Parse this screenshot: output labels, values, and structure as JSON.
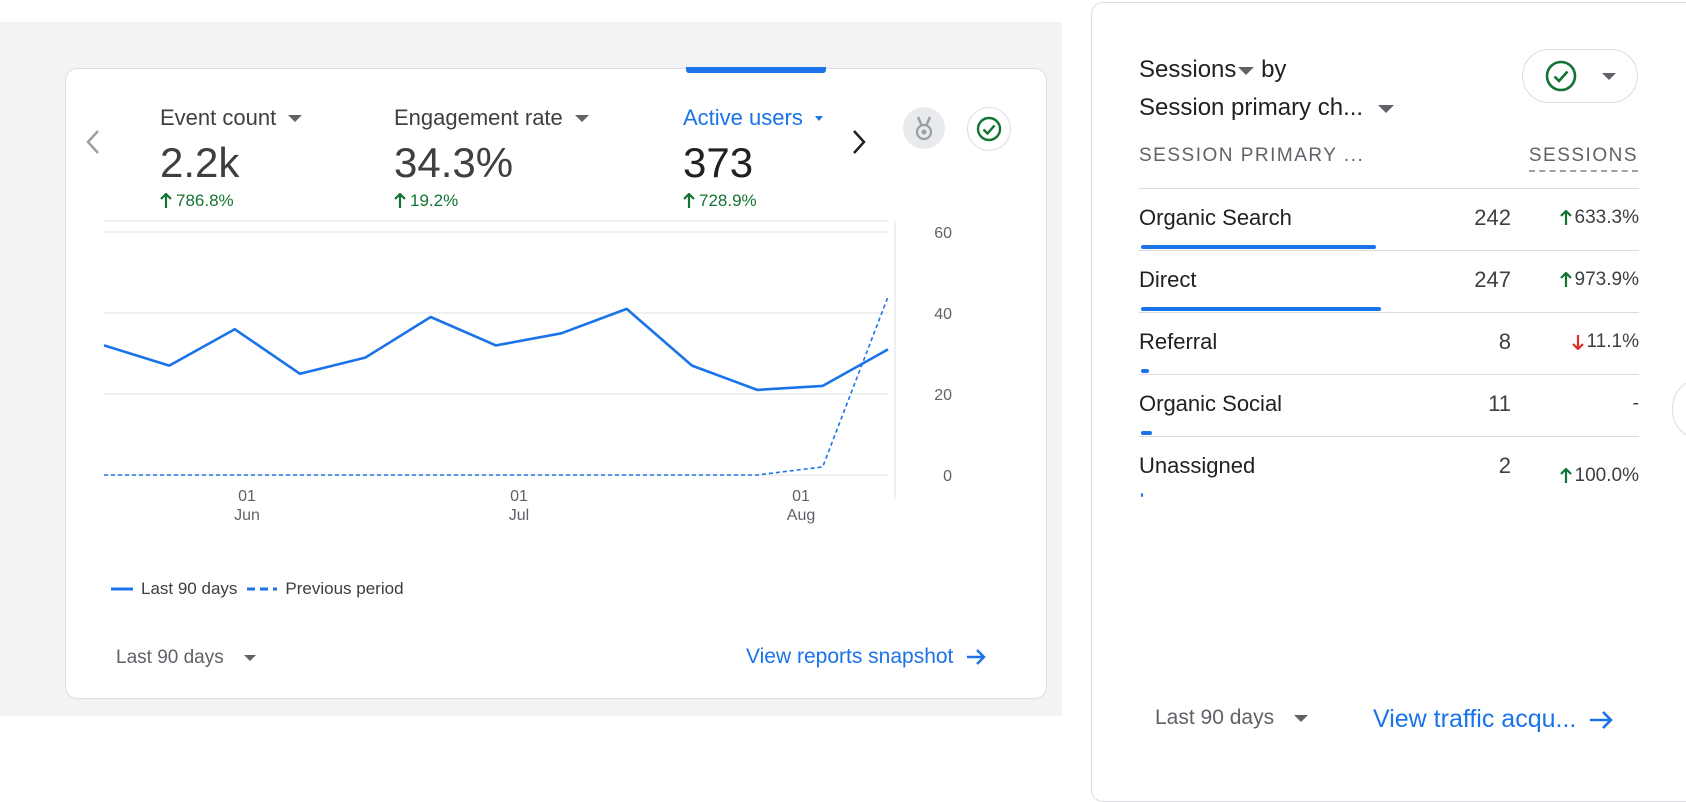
{
  "overview_card": {
    "metrics": [
      {
        "label": "Event count",
        "value": "2.2k",
        "delta": "786.8%",
        "delta_direction": "up",
        "active": false
      },
      {
        "label": "Engagement rate",
        "value": "34.3%",
        "delta": "19.2%",
        "delta_direction": "up",
        "active": false
      },
      {
        "label": "Active users",
        "value": "373",
        "delta": "728.9%",
        "delta_direction": "up",
        "active": true
      }
    ],
    "prev_icon": "chevron-left-icon",
    "next_icon": "chevron-right-icon",
    "insight_icon": "medal-icon",
    "status_icon": "check-circle-icon",
    "legend": {
      "current": "Last 90 days",
      "previous": "Previous period"
    },
    "date_range": "Last 90 days",
    "link_label": "View reports snapshot",
    "colors": {
      "accent": "#1a73e8",
      "positive": "#137333",
      "negative": "#d93025"
    }
  },
  "chart_data": {
    "type": "line",
    "x_tick_labels": [
      {
        "day": "01",
        "month": "Jun"
      },
      {
        "day": "01",
        "month": "Jul"
      },
      {
        "day": "01",
        "month": "Aug"
      }
    ],
    "ylim": [
      0,
      60
    ],
    "y_ticks": [
      "60",
      "40",
      "20",
      "0"
    ],
    "grid": true,
    "legend_position": "bottom-left",
    "series": [
      {
        "name": "Last 90 days",
        "style": "solid",
        "values": [
          32,
          27,
          36,
          25,
          29,
          39,
          32,
          35,
          41,
          27,
          21,
          22,
          31
        ]
      },
      {
        "name": "Previous period",
        "style": "dashed",
        "values": [
          0,
          0,
          0,
          0,
          0,
          0,
          0,
          0,
          0,
          0,
          0,
          2,
          44
        ]
      }
    ]
  },
  "sessions_card": {
    "title_metric": "Sessions",
    "title_by": "by",
    "title_dimension": "Session primary ch...",
    "status_icon": "check-circle-icon",
    "column_headers": {
      "dimension": "SESSION PRIMARY ...",
      "metric": "SESSIONS"
    },
    "rows": [
      {
        "label": "Organic Search",
        "value": "242",
        "delta": "633.3%",
        "delta_direction": "up",
        "share": 0.98
      },
      {
        "label": "Direct",
        "value": "247",
        "delta": "973.9%",
        "delta_direction": "up",
        "share": 1.0
      },
      {
        "label": "Referral",
        "value": "8",
        "delta": "11.1%",
        "delta_direction": "down",
        "share": 0.032
      },
      {
        "label": "Organic Social",
        "value": "11",
        "delta": "-",
        "delta_direction": "none",
        "share": 0.045
      },
      {
        "label": "Unassigned",
        "value": "2",
        "delta": "100.0%",
        "delta_direction": "up",
        "share": 0.008
      }
    ],
    "date_range": "Last 90 days",
    "link_label": "View traffic acqu..."
  }
}
